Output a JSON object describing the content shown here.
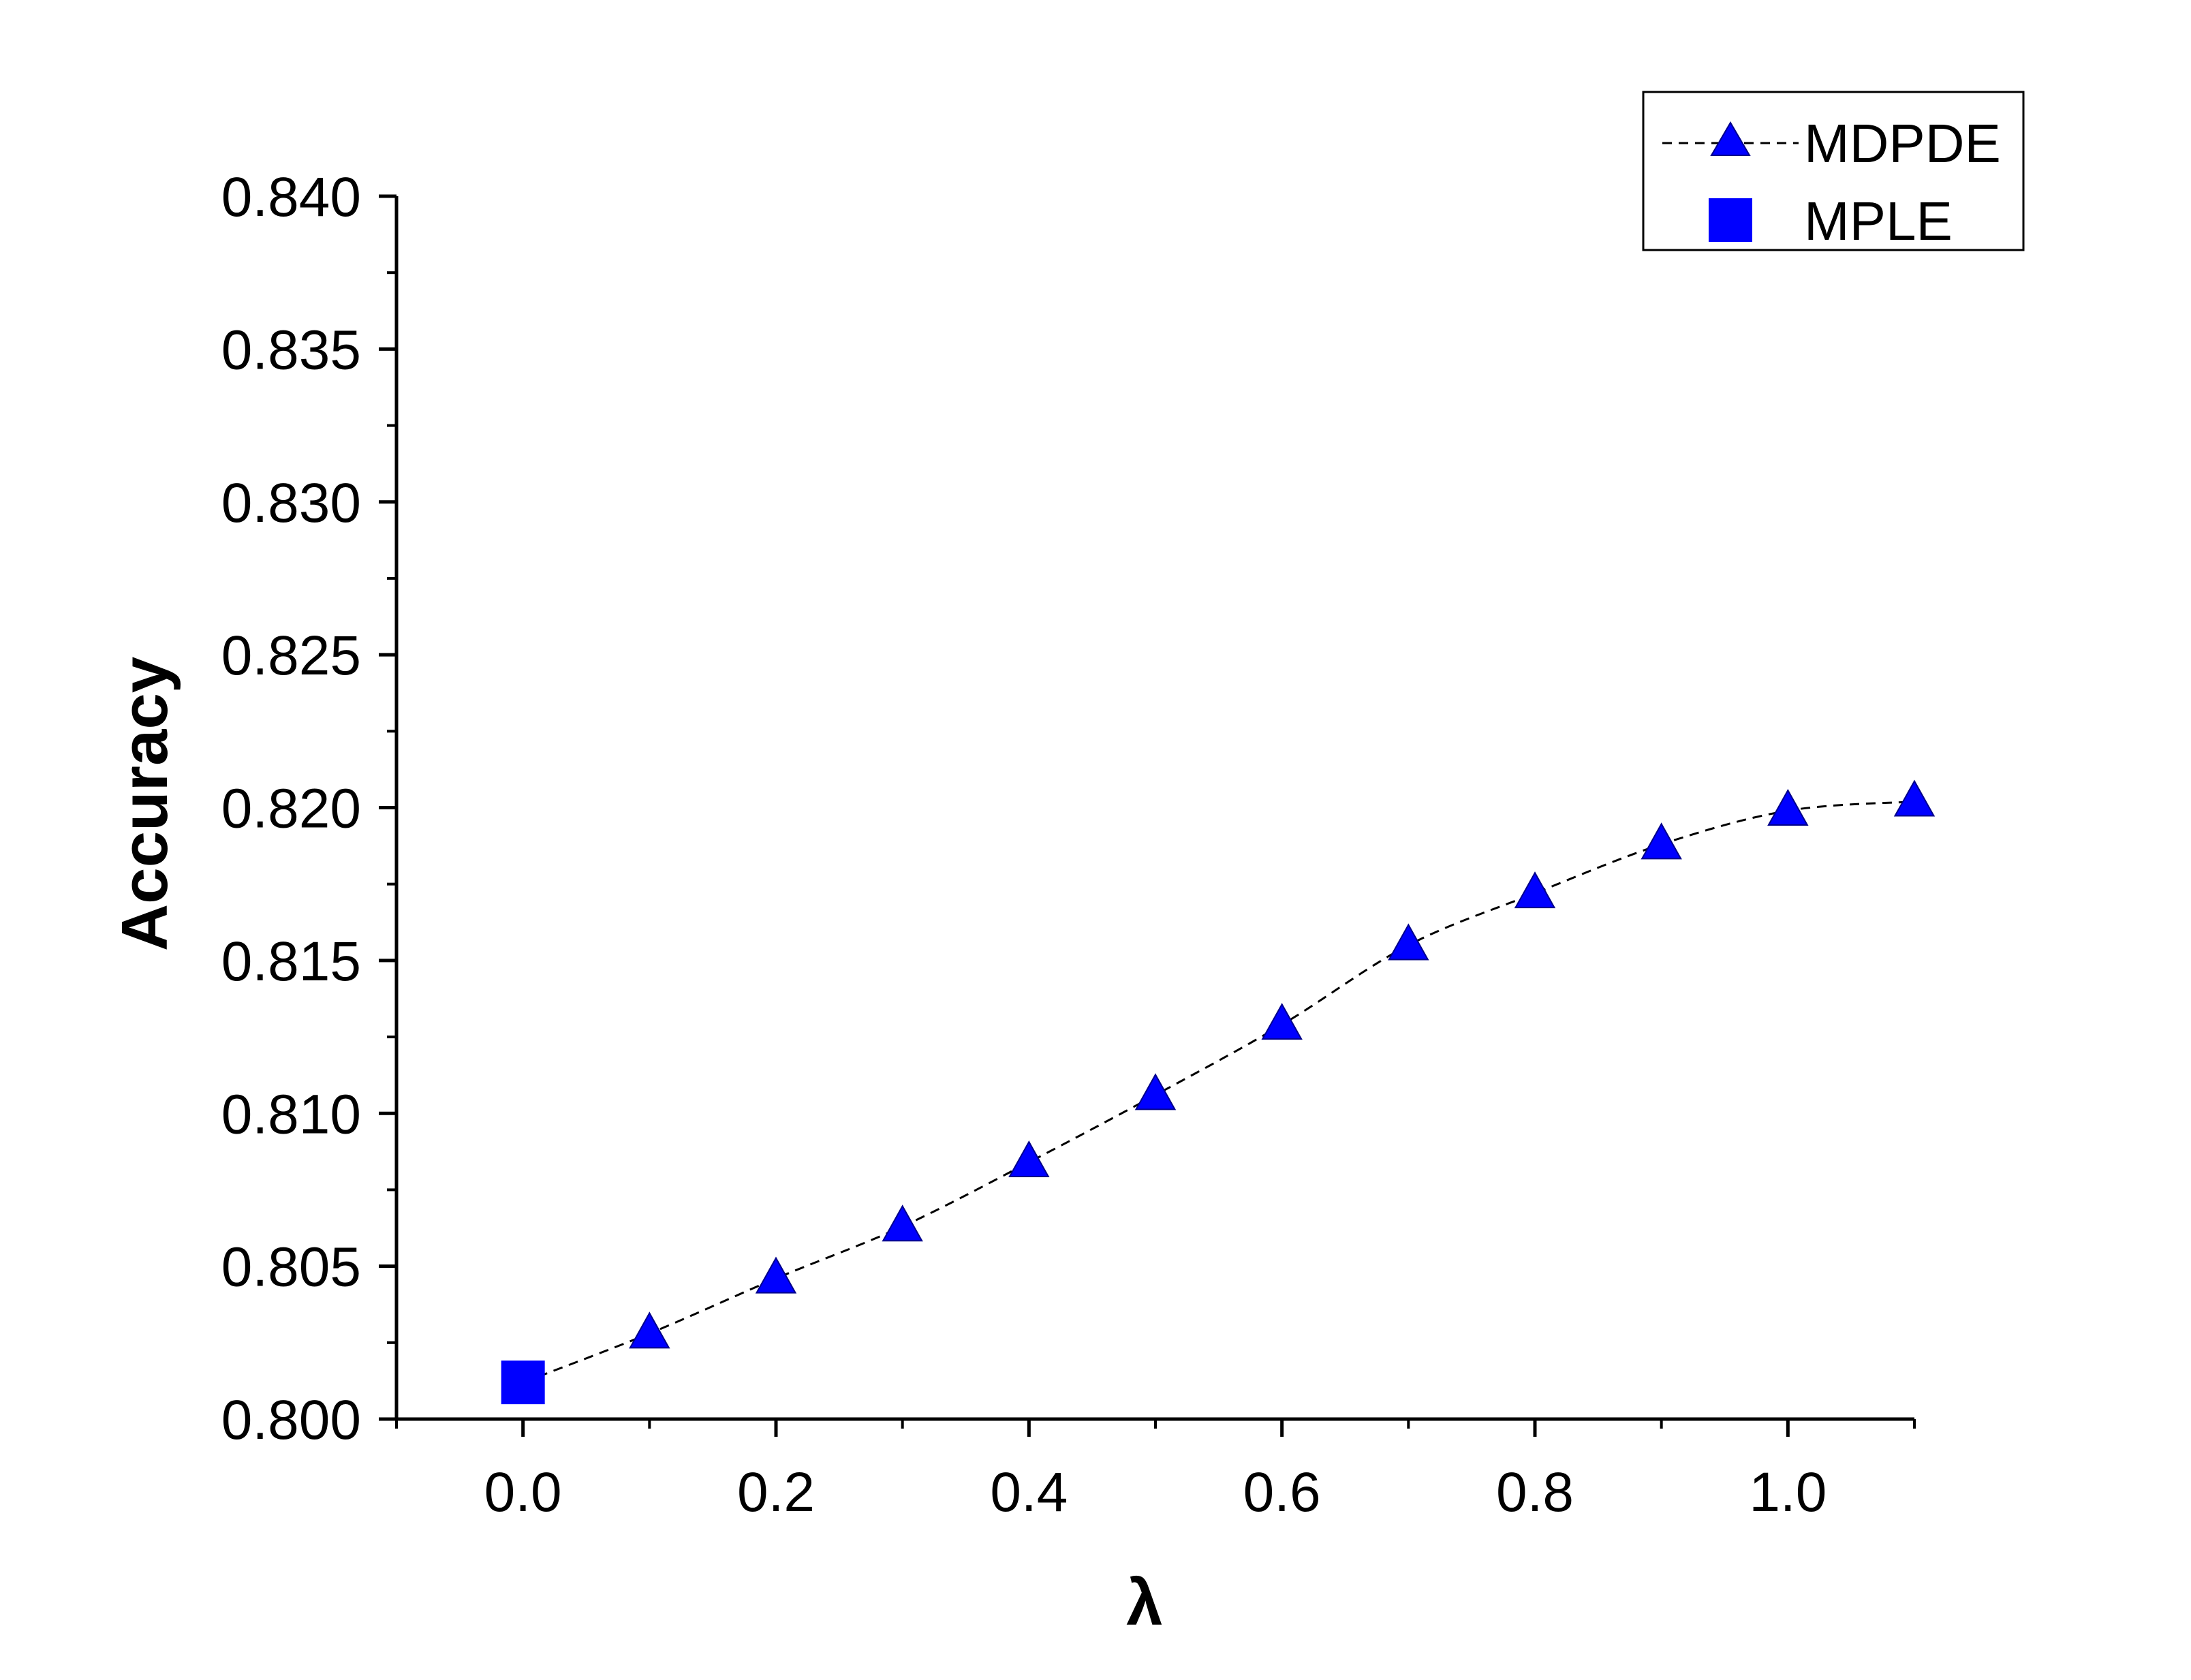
{
  "chart_data": {
    "type": "line",
    "xlabel": "λ",
    "ylabel": "Accuracy",
    "xlim": [
      -0.1,
      1.1
    ],
    "ylim": [
      0.8,
      0.84
    ],
    "x_ticks": [
      "0.0",
      "0.2",
      "0.4",
      "0.6",
      "0.8",
      "1.0"
    ],
    "y_ticks": [
      "0.800",
      "0.805",
      "0.810",
      "0.815",
      "0.820",
      "0.825",
      "0.830",
      "0.835",
      "0.840"
    ],
    "grid": false,
    "legend_position": "top-right",
    "series": [
      {
        "name": "MDPDE",
        "marker": "triangle",
        "line_style": "dashed",
        "color": "#0000ff",
        "line_color": "#000000",
        "x": [
          0.1,
          0.2,
          0.3,
          0.4,
          0.5,
          0.6,
          0.7,
          0.8,
          0.9,
          1.0,
          1.1
        ],
        "y": [
          0.8028,
          0.8046,
          0.8063,
          0.8084,
          0.8106,
          0.8129,
          0.8155,
          0.8172,
          0.8188,
          0.8199,
          0.8202
        ]
      },
      {
        "name": "MPLE",
        "marker": "square",
        "color": "#0000ff",
        "x": [
          0.0
        ],
        "y": [
          0.8012
        ]
      }
    ]
  }
}
